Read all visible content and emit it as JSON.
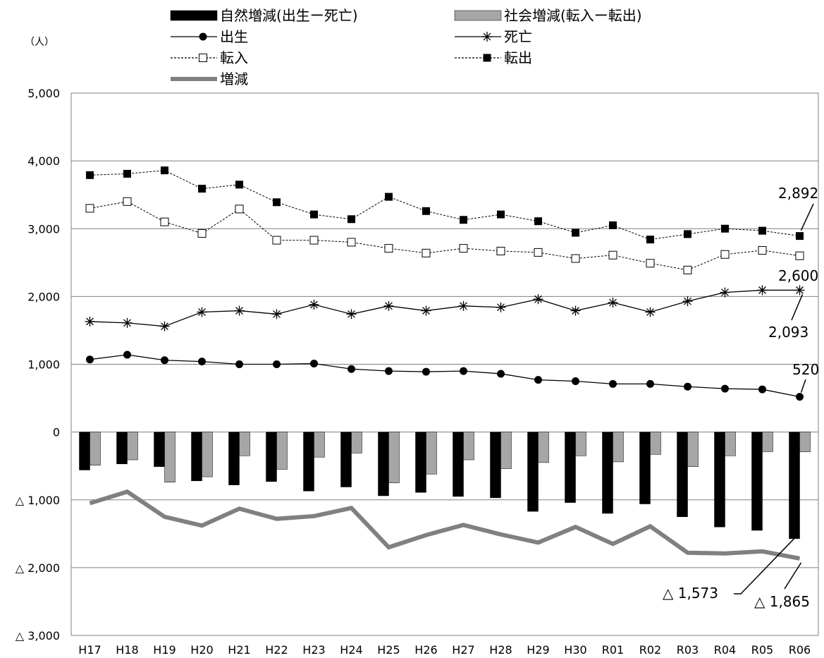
{
  "chart_data": {
    "type": "bar",
    "unit_label": "（人）",
    "categories": [
      "H17",
      "H18",
      "H19",
      "H20",
      "H21",
      "H22",
      "H23",
      "H24",
      "H25",
      "H26",
      "H27",
      "H28",
      "H29",
      "H30",
      "R01",
      "R02",
      "R03",
      "R04",
      "R05",
      "R06"
    ],
    "ylim": [
      -3000,
      5000
    ],
    "ytick_values": [
      5000,
      4000,
      3000,
      2000,
      1000,
      0,
      -1000,
      -2000,
      -3000
    ],
    "ytick_labels": [
      "5,000",
      "4,000",
      "3,000",
      "2,000",
      "1,000",
      "0",
      "△ 1,000",
      "△ 2,000",
      "△ 3,000"
    ],
    "grid": true,
    "legend_position": "top",
    "series": [
      {
        "name": "自然増減(出生ー死亡)",
        "kind": "bar",
        "color": "#000000",
        "values": [
          -560,
          -470,
          -510,
          -720,
          -780,
          -730,
          -870,
          -810,
          -940,
          -890,
          -950,
          -970,
          -1170,
          -1040,
          -1200,
          -1060,
          -1250,
          -1400,
          -1450,
          -1573
        ]
      },
      {
        "name": "社会増減(転入ー転出)",
        "kind": "bar",
        "color": "#a6a6a6",
        "values": [
          -490,
          -410,
          -740,
          -660,
          -350,
          -550,
          -370,
          -310,
          -750,
          -620,
          -410,
          -540,
          -450,
          -350,
          -440,
          -330,
          -510,
          -350,
          -290,
          -292
        ]
      },
      {
        "name": "出生",
        "kind": "line",
        "marker": "circle",
        "color": "#000000",
        "values": [
          1070,
          1140,
          1060,
          1040,
          1000,
          1000,
          1010,
          930,
          900,
          890,
          900,
          860,
          770,
          750,
          710,
          710,
          670,
          640,
          630,
          520
        ]
      },
      {
        "name": "死亡",
        "kind": "line",
        "marker": "asterisk",
        "color": "#000000",
        "values": [
          1630,
          1610,
          1560,
          1770,
          1790,
          1740,
          1880,
          1740,
          1860,
          1790,
          1860,
          1840,
          1960,
          1790,
          1910,
          1770,
          1930,
          2060,
          2093,
          2093
        ]
      },
      {
        "name": "転入",
        "kind": "line",
        "marker": "open-square",
        "dashed": true,
        "color": "#000000",
        "values": [
          3300,
          3400,
          3100,
          2930,
          3290,
          2830,
          2830,
          2800,
          2710,
          2640,
          2710,
          2670,
          2650,
          2560,
          2610,
          2490,
          2390,
          2620,
          2680,
          2600
        ]
      },
      {
        "name": "転出",
        "kind": "line",
        "marker": "filled-square",
        "dashed": true,
        "color": "#000000",
        "values": [
          3790,
          3810,
          3860,
          3590,
          3650,
          3390,
          3210,
          3140,
          3470,
          3260,
          3130,
          3210,
          3110,
          2940,
          3050,
          2840,
          2920,
          3000,
          2970,
          2892
        ]
      },
      {
        "name": "増減",
        "kind": "line",
        "marker": "none",
        "color": "#808080",
        "values": [
          -1050,
          -880,
          -1250,
          -1380,
          -1130,
          -1280,
          -1240,
          -1120,
          -1700,
          -1520,
          -1370,
          -1510,
          -1630,
          -1400,
          -1650,
          -1390,
          -1780,
          -1790,
          -1760,
          -1865
        ]
      }
    ],
    "annotations": [
      {
        "text": "2,892",
        "series": "転出"
      },
      {
        "text": "2,600",
        "series": "転入"
      },
      {
        "text": "2,093",
        "series": "死亡"
      },
      {
        "text": "520",
        "series": "出生"
      },
      {
        "text": "△ 1,573",
        "series": "自然増減(出生ー死亡)"
      },
      {
        "text": "△ 1,865",
        "series": "増減"
      }
    ]
  }
}
